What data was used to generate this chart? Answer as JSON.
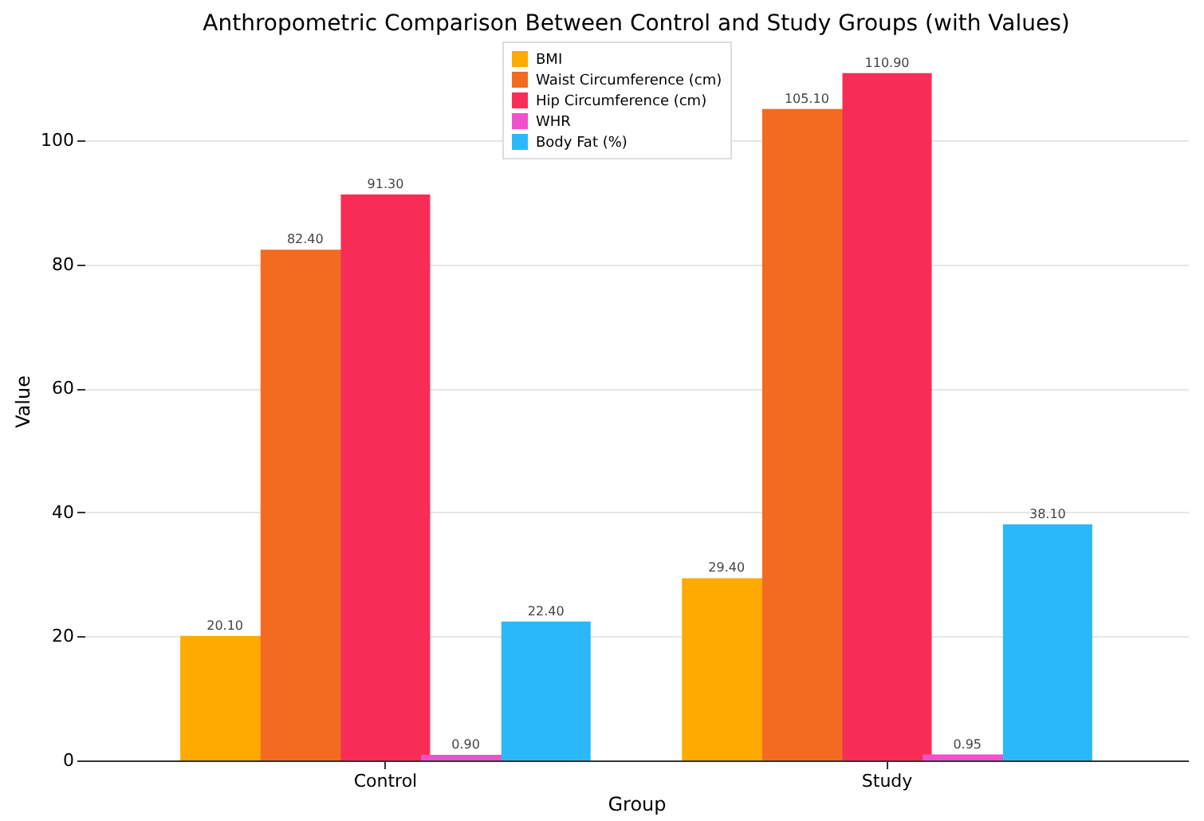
{
  "chart_data": {
    "type": "bar",
    "title": "Anthropometric Comparison Between Control and Study Groups (with Values)",
    "xlabel": "Group",
    "ylabel": "Value",
    "categories": [
      "Control",
      "Study"
    ],
    "series": [
      {
        "name": "BMI",
        "color": "#ffaa00",
        "values": [
          20.1,
          29.4
        ],
        "value_labels": [
          "20.10",
          "29.40"
        ]
      },
      {
        "name": "Waist Circumference (cm)",
        "color": "#f26b21",
        "values": [
          82.4,
          105.1
        ],
        "value_labels": [
          "82.40",
          "105.10"
        ]
      },
      {
        "name": "Hip Circumference (cm)",
        "color": "#f72d55",
        "values": [
          91.3,
          110.9
        ],
        "value_labels": [
          "91.30",
          "110.90"
        ]
      },
      {
        "name": "WHR",
        "color": "#f24fcc",
        "values": [
          0.9,
          0.95
        ],
        "value_labels": [
          "0.90",
          "0.95"
        ]
      },
      {
        "name": "Body Fat (%)",
        "color": "#2bb8fa",
        "values": [
          22.4,
          38.1
        ],
        "value_labels": [
          "22.40",
          "38.10"
        ]
      }
    ],
    "ylim": [
      0,
      116
    ],
    "yticks": [
      0,
      20,
      40,
      60,
      80,
      100
    ],
    "grid": "y",
    "legend": "top"
  }
}
